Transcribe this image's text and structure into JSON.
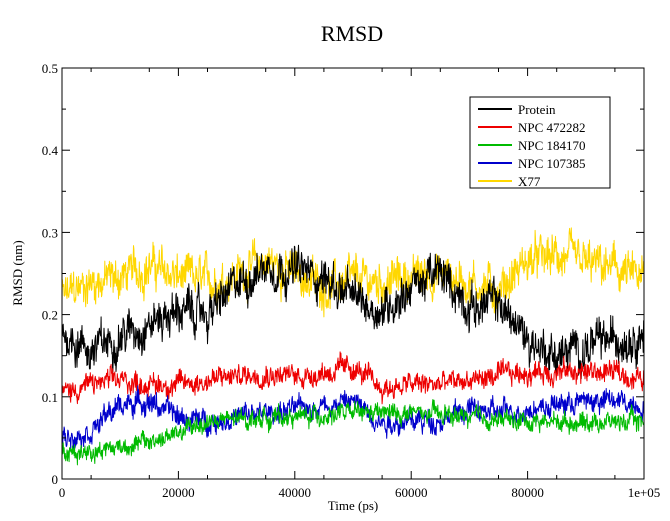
{
  "chart_data": {
    "type": "line",
    "title": "RMSD",
    "xlabel": "Time (ps)",
    "ylabel": "RMSD (nm)",
    "xlim": [
      0,
      100000
    ],
    "ylim": [
      0,
      0.5
    ],
    "x_ticks": [
      0,
      20000,
      40000,
      60000,
      80000,
      100000
    ],
    "x_tick_labels": [
      "0",
      "20000",
      "40000",
      "60000",
      "80000",
      "1e+05"
    ],
    "y_ticks": [
      0,
      0.1,
      0.2,
      0.3,
      0.4,
      0.5
    ],
    "y_tick_labels": [
      "0",
      "0.1",
      "0.2",
      "0.3",
      "0.4",
      "0.5"
    ],
    "grid": false,
    "legend_position": "top-right",
    "x": [
      0,
      5000,
      10000,
      15000,
      20000,
      25000,
      30000,
      35000,
      40000,
      45000,
      50000,
      55000,
      60000,
      65000,
      70000,
      75000,
      80000,
      85000,
      90000,
      95000,
      100000
    ],
    "series": [
      {
        "name": "Protein",
        "color": "#000000",
        "values": [
          0.18,
          0.155,
          0.175,
          0.19,
          0.205,
          0.2,
          0.235,
          0.26,
          0.255,
          0.245,
          0.22,
          0.205,
          0.235,
          0.25,
          0.21,
          0.215,
          0.17,
          0.15,
          0.16,
          0.17,
          0.18
        ]
      },
      {
        "name": "NPC 472282",
        "color": "#ee0000",
        "values": [
          0.105,
          0.115,
          0.12,
          0.115,
          0.115,
          0.12,
          0.125,
          0.13,
          0.125,
          0.13,
          0.135,
          0.11,
          0.115,
          0.115,
          0.12,
          0.125,
          0.13,
          0.13,
          0.13,
          0.13,
          0.12
        ]
      },
      {
        "name": "NPC 184170",
        "color": "#00bb00",
        "values": [
          0.03,
          0.035,
          0.04,
          0.045,
          0.055,
          0.07,
          0.072,
          0.075,
          0.075,
          0.078,
          0.08,
          0.08,
          0.08,
          0.078,
          0.075,
          0.072,
          0.07,
          0.07,
          0.07,
          0.07,
          0.07
        ]
      },
      {
        "name": "NPC 107385",
        "color": "#0000cc",
        "values": [
          0.05,
          0.06,
          0.09,
          0.095,
          0.075,
          0.07,
          0.075,
          0.08,
          0.085,
          0.09,
          0.095,
          0.07,
          0.07,
          0.072,
          0.085,
          0.08,
          0.085,
          0.09,
          0.095,
          0.095,
          0.09
        ]
      },
      {
        "name": "X77",
        "color": "#ffd700",
        "values": [
          0.22,
          0.24,
          0.245,
          0.26,
          0.245,
          0.24,
          0.25,
          0.265,
          0.25,
          0.235,
          0.24,
          0.24,
          0.245,
          0.25,
          0.24,
          0.23,
          0.265,
          0.27,
          0.26,
          0.255,
          0.24
        ]
      }
    ]
  }
}
